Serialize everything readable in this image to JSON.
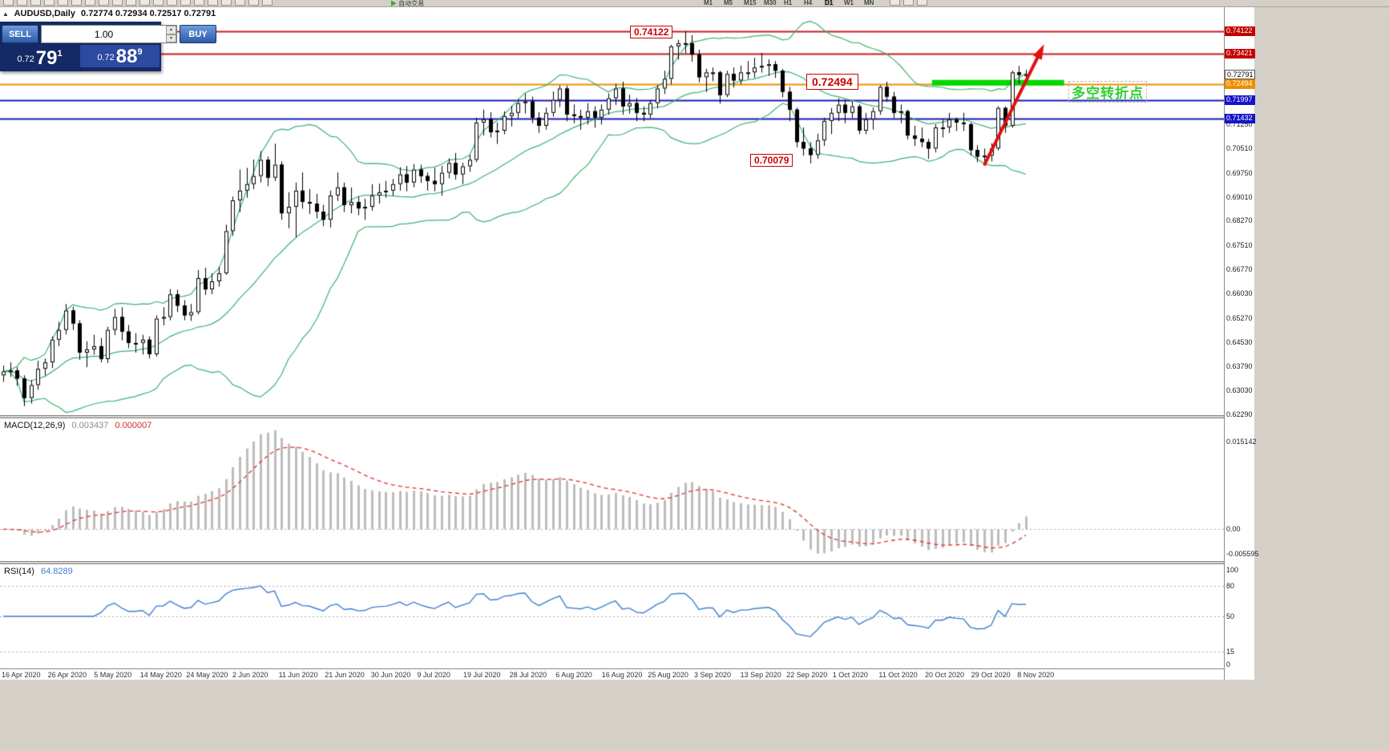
{
  "window": {
    "filler_bg": "#d4d0c8",
    "chart_bg": "#ffffff"
  },
  "toolbar": {
    "timeframes": [
      "M1",
      "M5",
      "M15",
      "M30",
      "H1",
      "H4",
      "D1",
      "W1",
      "MN"
    ],
    "active_timeframe": "D1",
    "autotrading_label": "自动交易",
    "autotrading_play_icon": "▶",
    "icon_names": [
      "new-order-icon",
      "chart-bars-icon",
      "candlestick-chart-icon",
      "line-chart-icon",
      "zoom-in-icon",
      "zoom-out-icon",
      "tile-windows-icon",
      "navigator-icon",
      "terminal-icon",
      "strategy-tester-icon",
      "cursor-icon",
      "crosshair-icon",
      "vertical-line-icon",
      "horizontal-line-icon",
      "trendline-icon",
      "channel-icon",
      "fibonacci-icon",
      "text-label-icon",
      "arrows-icon",
      "shapes-icon"
    ],
    "right_icon_names": [
      "indicators-icon",
      "templates-icon",
      "window-cascade-icon"
    ]
  },
  "chart": {
    "collapse_icon": "▲",
    "symbol_label": "AUDUSD,Daily",
    "ohlc_values": "0.72774 0.72934 0.72517 0.72791"
  },
  "quote_panel": {
    "sell_label": "SELL",
    "buy_label": "BUY",
    "volume": "1.00",
    "spin_up_icon": "▴",
    "spin_down_icon": "▾",
    "sell_price": {
      "small": "0.72",
      "big": "79",
      "sup": "1"
    },
    "buy_price": {
      "small": "0.72",
      "big": "88",
      "sup": "9"
    }
  },
  "annotations": {
    "high_label": "0.74122",
    "mid_label": "0.72494",
    "low_label": "0.70079",
    "cn_note": "多空转折点"
  },
  "macd": {
    "name": "MACD(12,26,9)",
    "value_main": "0.003437",
    "value_signal": "0.000007",
    "scale_top": "0.015142",
    "scale_zero": "0.00",
    "scale_bottom": "-0.005595"
  },
  "rsi": {
    "name": "RSI(14)",
    "value": "64.8289",
    "scale": [
      "100",
      "80",
      "50",
      "15",
      "0"
    ],
    "levels": [
      80,
      50,
      15
    ]
  },
  "dates": [
    "16 Apr 2020",
    "26 Apr 2020",
    "5 May 2020",
    "14 May 2020",
    "24 May 2020",
    "2 Jun 2020",
    "11 Jun 2020",
    "21 Jun 2020",
    "30 Jun 2020",
    "9 Jul 2020",
    "19 Jul 2020",
    "28 Jul 2020",
    "6 Aug 2020",
    "16 Aug 2020",
    "25 Aug 2020",
    "3 Sep 2020",
    "13 Sep 2020",
    "22 Sep 2020",
    "1 Oct 2020",
    "11 Oct 2020",
    "20 Oct 2020",
    "29 Oct 2020",
    "8 Nov 2020"
  ],
  "chart_data": {
    "type": "candlestick",
    "symbol": "AUDUSD",
    "timeframe": "Daily",
    "ylim": [
      0.6227,
      0.7486
    ],
    "price_ticks": [
      "0.71250",
      "0.70510",
      "0.69750",
      "0.69010",
      "0.68270",
      "0.67510",
      "0.66770",
      "0.66030",
      "0.65270",
      "0.64530",
      "0.63790",
      "0.63030",
      "0.62290"
    ],
    "price_tags": [
      {
        "text": "0.74122",
        "price": 0.74122,
        "bg": "#c40000",
        "fg": "#ffffff"
      },
      {
        "text": "0.73421",
        "price": 0.73421,
        "bg": "#c40000",
        "fg": "#ffffff"
      },
      {
        "text": "0.72791",
        "price": 0.72791,
        "bg": "#ffffff",
        "fg": "#000000",
        "border": "#555555"
      },
      {
        "text": "0.72494",
        "price": 0.72494,
        "bg": "#ef8e00",
        "fg": "#ffffff"
      },
      {
        "text": "0.71997",
        "price": 0.71997,
        "bg": "#1414c8",
        "fg": "#ffffff"
      },
      {
        "text": "0.71432",
        "price": 0.71432,
        "bg": "#1414c8",
        "fg": "#ffffff"
      }
    ],
    "hlines": [
      {
        "price": 0.74122,
        "color": "#c41e22",
        "width": 2
      },
      {
        "price": 0.73421,
        "color": "#c41e22",
        "width": 2
      },
      {
        "price": 0.72494,
        "color": "#ef8e00",
        "width": 2
      },
      {
        "price": 0.71997,
        "color": "#1b1bb3",
        "width": 2
      },
      {
        "price": 0.71432,
        "color": "#1b1bb3",
        "width": 2
      }
    ],
    "bollinger": {
      "period": 20,
      "deviation": 2
    },
    "highlight_bar": {
      "i1": 133.5,
      "i2": 152.5,
      "price": 0.7253
    },
    "trend_arrow": {
      "i1": 141,
      "p1": 0.6998,
      "i2": 149.3,
      "p2": 0.7358
    },
    "indicators": [
      {
        "type": "MACD",
        "fast": 12,
        "slow": 26,
        "signal": 9,
        "current": [
          0.003437,
          7e-06
        ]
      },
      {
        "type": "RSI",
        "period": 14,
        "current": 64.8289
      }
    ],
    "style": {
      "bull": "#ffffff",
      "bear": "#000000",
      "wick": "#000000",
      "outline": "#000000",
      "bollinger": "#3CB371",
      "macd_hist": "#bdbdbd",
      "macd_signal": "#e03030",
      "rsi_line": "#3f7fd2",
      "highlight_green": "#00d800",
      "arrow_red": "#e01010",
      "grid_dots": "#a8a8a8"
    },
    "ohlc": [
      [
        0.635,
        0.638,
        0.633,
        0.6362
      ],
      [
        0.6362,
        0.639,
        0.6345,
        0.6365
      ],
      [
        0.6365,
        0.6375,
        0.6318,
        0.634
      ],
      [
        0.634,
        0.635,
        0.6255,
        0.628
      ],
      [
        0.628,
        0.6335,
        0.6263,
        0.632
      ],
      [
        0.632,
        0.6395,
        0.6305,
        0.637
      ],
      [
        0.637,
        0.6402,
        0.635,
        0.639
      ],
      [
        0.639,
        0.647,
        0.6372,
        0.646
      ],
      [
        0.646,
        0.6515,
        0.644,
        0.649
      ],
      [
        0.649,
        0.657,
        0.6476,
        0.655
      ],
      [
        0.655,
        0.6562,
        0.649,
        0.651
      ],
      [
        0.651,
        0.652,
        0.6398,
        0.642
      ],
      [
        0.642,
        0.6455,
        0.6375,
        0.643
      ],
      [
        0.643,
        0.6475,
        0.6414,
        0.644
      ],
      [
        0.644,
        0.6465,
        0.639,
        0.64
      ],
      [
        0.64,
        0.65,
        0.6388,
        0.649
      ],
      [
        0.649,
        0.6555,
        0.6474,
        0.653
      ],
      [
        0.653,
        0.656,
        0.6458,
        0.6485
      ],
      [
        0.6485,
        0.6505,
        0.6434,
        0.645
      ],
      [
        0.645,
        0.648,
        0.642,
        0.645
      ],
      [
        0.645,
        0.6475,
        0.6414,
        0.646
      ],
      [
        0.646,
        0.647,
        0.6402,
        0.6415
      ],
      [
        0.6415,
        0.6535,
        0.6408,
        0.6525
      ],
      [
        0.6525,
        0.656,
        0.6504,
        0.653
      ],
      [
        0.653,
        0.6616,
        0.652,
        0.66
      ],
      [
        0.66,
        0.6614,
        0.6545,
        0.6565
      ],
      [
        0.6565,
        0.6582,
        0.652,
        0.6535
      ],
      [
        0.6535,
        0.657,
        0.6518,
        0.6545
      ],
      [
        0.6545,
        0.6675,
        0.6538,
        0.665
      ],
      [
        0.665,
        0.6682,
        0.6598,
        0.6615
      ],
      [
        0.6615,
        0.6665,
        0.66,
        0.664
      ],
      [
        0.664,
        0.6685,
        0.6624,
        0.6665
      ],
      [
        0.6665,
        0.6815,
        0.666,
        0.6795
      ],
      [
        0.6795,
        0.6902,
        0.678,
        0.689
      ],
      [
        0.689,
        0.6985,
        0.6854,
        0.692
      ],
      [
        0.692,
        0.699,
        0.6898,
        0.694
      ],
      [
        0.694,
        0.7016,
        0.6924,
        0.6965
      ],
      [
        0.6965,
        0.7042,
        0.6945,
        0.7015
      ],
      [
        0.7015,
        0.7025,
        0.6934,
        0.696
      ],
      [
        0.696,
        0.7065,
        0.695,
        0.7
      ],
      [
        0.7,
        0.701,
        0.683,
        0.685
      ],
      [
        0.685,
        0.6915,
        0.6804,
        0.687
      ],
      [
        0.687,
        0.6945,
        0.6776,
        0.692
      ],
      [
        0.692,
        0.6976,
        0.6864,
        0.6885
      ],
      [
        0.6885,
        0.6925,
        0.6848,
        0.688
      ],
      [
        0.688,
        0.691,
        0.6834,
        0.6855
      ],
      [
        0.6855,
        0.6876,
        0.681,
        0.683
      ],
      [
        0.683,
        0.692,
        0.6806,
        0.6905
      ],
      [
        0.6905,
        0.6976,
        0.6888,
        0.693
      ],
      [
        0.693,
        0.6945,
        0.6854,
        0.6875
      ],
      [
        0.6875,
        0.693,
        0.685,
        0.6885
      ],
      [
        0.6885,
        0.6902,
        0.6844,
        0.6865
      ],
      [
        0.6865,
        0.6895,
        0.683,
        0.687
      ],
      [
        0.687,
        0.694,
        0.6858,
        0.6905
      ],
      [
        0.6905,
        0.6942,
        0.688,
        0.6915
      ],
      [
        0.6915,
        0.695,
        0.6898,
        0.692
      ],
      [
        0.692,
        0.6956,
        0.6904,
        0.694
      ],
      [
        0.694,
        0.6992,
        0.692,
        0.697
      ],
      [
        0.697,
        0.6996,
        0.6918,
        0.6945
      ],
      [
        0.6945,
        0.7002,
        0.693,
        0.6985
      ],
      [
        0.6985,
        0.7,
        0.6944,
        0.6965
      ],
      [
        0.6965,
        0.6976,
        0.692,
        0.695
      ],
      [
        0.695,
        0.699,
        0.6918,
        0.694
      ],
      [
        0.694,
        0.6996,
        0.6904,
        0.6975
      ],
      [
        0.6975,
        0.702,
        0.6958,
        0.7005
      ],
      [
        0.7005,
        0.7036,
        0.6954,
        0.697
      ],
      [
        0.697,
        0.7006,
        0.694,
        0.6995
      ],
      [
        0.6995,
        0.703,
        0.6978,
        0.7015
      ],
      [
        0.7015,
        0.7145,
        0.7008,
        0.713
      ],
      [
        0.713,
        0.717,
        0.709,
        0.714
      ],
      [
        0.714,
        0.7162,
        0.7084,
        0.71
      ],
      [
        0.71,
        0.713,
        0.7064,
        0.7105
      ],
      [
        0.7105,
        0.7165,
        0.7094,
        0.715
      ],
      [
        0.715,
        0.7182,
        0.7118,
        0.716
      ],
      [
        0.716,
        0.7202,
        0.7144,
        0.719
      ],
      [
        0.719,
        0.722,
        0.7158,
        0.7195
      ],
      [
        0.7195,
        0.721,
        0.7128,
        0.7145
      ],
      [
        0.7145,
        0.7162,
        0.7098,
        0.712
      ],
      [
        0.712,
        0.7176,
        0.7108,
        0.716
      ],
      [
        0.716,
        0.7226,
        0.7148,
        0.72
      ],
      [
        0.72,
        0.7245,
        0.7178,
        0.7235
      ],
      [
        0.7235,
        0.7244,
        0.7134,
        0.7155
      ],
      [
        0.7155,
        0.7186,
        0.7128,
        0.715
      ],
      [
        0.715,
        0.717,
        0.7108,
        0.7145
      ],
      [
        0.7145,
        0.719,
        0.7124,
        0.7165
      ],
      [
        0.7165,
        0.718,
        0.7114,
        0.7145
      ],
      [
        0.7145,
        0.7186,
        0.7124,
        0.717
      ],
      [
        0.717,
        0.722,
        0.7154,
        0.7205
      ],
      [
        0.7205,
        0.725,
        0.7184,
        0.7235
      ],
      [
        0.7235,
        0.7256,
        0.7154,
        0.718
      ],
      [
        0.718,
        0.7216,
        0.7158,
        0.719
      ],
      [
        0.719,
        0.7206,
        0.7134,
        0.716
      ],
      [
        0.716,
        0.718,
        0.7134,
        0.7155
      ],
      [
        0.7155,
        0.72,
        0.7144,
        0.719
      ],
      [
        0.719,
        0.7245,
        0.7174,
        0.7235
      ],
      [
        0.7235,
        0.729,
        0.7218,
        0.7265
      ],
      [
        0.7265,
        0.737,
        0.7248,
        0.7365
      ],
      [
        0.7365,
        0.7385,
        0.7324,
        0.7375
      ],
      [
        0.7375,
        0.7412,
        0.7344,
        0.7375
      ],
      [
        0.7375,
        0.74,
        0.7318,
        0.734
      ],
      [
        0.734,
        0.7355,
        0.7254,
        0.727
      ],
      [
        0.727,
        0.7296,
        0.7224,
        0.7285
      ],
      [
        0.7285,
        0.73,
        0.7258,
        0.7285
      ],
      [
        0.7285,
        0.729,
        0.7188,
        0.7215
      ],
      [
        0.7215,
        0.729,
        0.7208,
        0.728
      ],
      [
        0.728,
        0.73,
        0.7238,
        0.726
      ],
      [
        0.726,
        0.7306,
        0.7248,
        0.7285
      ],
      [
        0.7285,
        0.732,
        0.7264,
        0.7285
      ],
      [
        0.7285,
        0.733,
        0.7268,
        0.73
      ],
      [
        0.73,
        0.7345,
        0.7284,
        0.7305
      ],
      [
        0.7305,
        0.7325,
        0.7274,
        0.731
      ],
      [
        0.731,
        0.732,
        0.7268,
        0.729
      ],
      [
        0.729,
        0.7296,
        0.7208,
        0.7225
      ],
      [
        0.7225,
        0.724,
        0.7134,
        0.717
      ],
      [
        0.717,
        0.7176,
        0.7054,
        0.707
      ],
      [
        0.707,
        0.7115,
        0.7028,
        0.705
      ],
      [
        0.705,
        0.707,
        0.7004,
        0.703
      ],
      [
        0.703,
        0.7096,
        0.7018,
        0.7075
      ],
      [
        0.7075,
        0.7145,
        0.7058,
        0.7135
      ],
      [
        0.7135,
        0.7175,
        0.7094,
        0.716
      ],
      [
        0.716,
        0.7205,
        0.7134,
        0.7185
      ],
      [
        0.7185,
        0.72,
        0.7128,
        0.716
      ],
      [
        0.716,
        0.7195,
        0.7144,
        0.718
      ],
      [
        0.718,
        0.7186,
        0.7094,
        0.7105
      ],
      [
        0.7105,
        0.716,
        0.7094,
        0.714
      ],
      [
        0.714,
        0.7176,
        0.7108,
        0.7165
      ],
      [
        0.7165,
        0.7245,
        0.7154,
        0.724
      ],
      [
        0.724,
        0.7256,
        0.7194,
        0.721
      ],
      [
        0.721,
        0.7225,
        0.7144,
        0.716
      ],
      [
        0.716,
        0.7186,
        0.7128,
        0.7165
      ],
      [
        0.7165,
        0.717,
        0.7078,
        0.709
      ],
      [
        0.709,
        0.712,
        0.7058,
        0.708
      ],
      [
        0.708,
        0.7115,
        0.7054,
        0.707
      ],
      [
        0.707,
        0.708,
        0.7018,
        0.705
      ],
      [
        0.705,
        0.7125,
        0.7038,
        0.7115
      ],
      [
        0.7115,
        0.714,
        0.7084,
        0.7115
      ],
      [
        0.7115,
        0.716,
        0.7098,
        0.714
      ],
      [
        0.714,
        0.7146,
        0.7104,
        0.713
      ],
      [
        0.713,
        0.716,
        0.7104,
        0.7125
      ],
      [
        0.7125,
        0.713,
        0.7028,
        0.7045
      ],
      [
        0.7045,
        0.706,
        0.7008,
        0.7025
      ],
      [
        0.7025,
        0.705,
        0.7008,
        0.7028
      ],
      [
        0.7028,
        0.7066,
        0.701,
        0.705
      ],
      [
        0.705,
        0.718,
        0.7044,
        0.7175
      ],
      [
        0.7175,
        0.718,
        0.7098,
        0.712
      ],
      [
        0.712,
        0.729,
        0.7114,
        0.7285
      ],
      [
        0.7285,
        0.7305,
        0.725,
        0.7277
      ],
      [
        0.7277,
        0.7293,
        0.7252,
        0.7279
      ]
    ]
  }
}
